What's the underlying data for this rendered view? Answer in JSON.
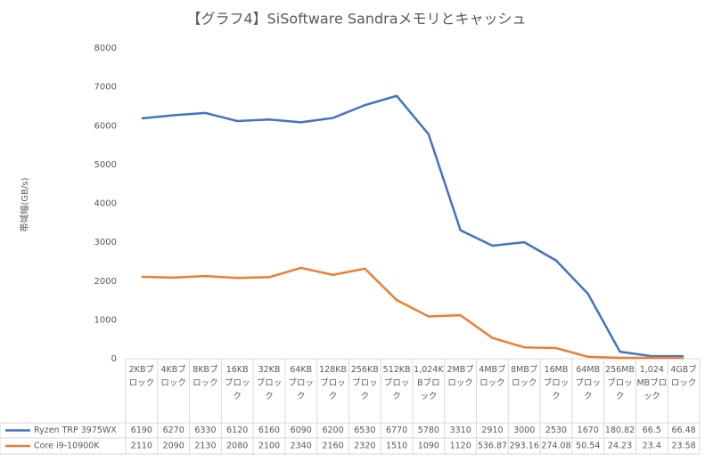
{
  "chart_data": {
    "type": "line",
    "title": "【グラフ4】SiSoftware Sandraメモリとキャッシュ",
    "y_label": "帯域幅(GB/s)",
    "categories": [
      "2KBブロック",
      "4KBブロック",
      "8KBブロック",
      "16KBブロック",
      "32KBブロック",
      "64KBブロック",
      "128KBブロック",
      "256KBブロック",
      "512KBブロック",
      "1,024KBブロック",
      "2MBブロック",
      "4MBブロック",
      "8MBブロック",
      "16MBブロック",
      "64MBブロック",
      "256MBブロック",
      "1,024MBブロック",
      "4GBブロック"
    ],
    "series": [
      {
        "name": "Ryzen TRP 3975WX",
        "color": "#4472c4",
        "values": [
          6190,
          6270,
          6330,
          6120,
          6160,
          6090,
          6200,
          6530,
          6770,
          5780,
          3310,
          2910,
          3000,
          2530,
          1670,
          180.82,
          66.5,
          66.48
        ]
      },
      {
        "name": "Core i9-10900K",
        "color": "#ed7d31",
        "values": [
          2110,
          2090,
          2130,
          2080,
          2100,
          2340,
          2160,
          2320,
          1510,
          1090,
          1120,
          536.87,
          293.16,
          274.08,
          50.54,
          24.23,
          23.4,
          23.58
        ]
      }
    ],
    "ylim": [
      0,
      8000
    ],
    "yticks": [
      0,
      1000,
      2000,
      3000,
      4000,
      5000,
      6000,
      7000,
      8000
    ],
    "grid": false
  }
}
